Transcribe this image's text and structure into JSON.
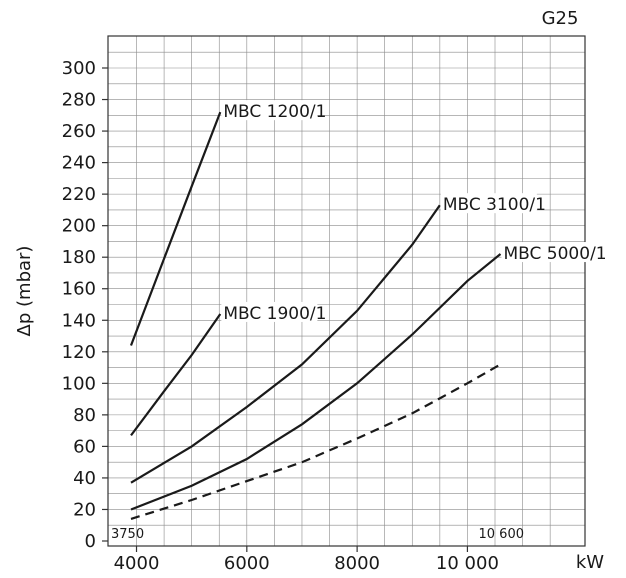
{
  "chart_data": {
    "type": "line",
    "title": "G25",
    "ylabel": "Δp (mbar)",
    "xlabel": "kW",
    "xlim": [
      3500,
      11500
    ],
    "ylim": [
      0,
      310
    ],
    "x_ticks": [
      4000,
      6000,
      8000,
      10000
    ],
    "x_tick_labels": [
      "4000",
      "6000",
      "8000",
      "10 000"
    ],
    "y_ticks": [
      0,
      20,
      40,
      60,
      80,
      100,
      120,
      140,
      160,
      180,
      200,
      220,
      240,
      260,
      280,
      300
    ],
    "grid": true,
    "annotations": [
      {
        "text": "3750",
        "x": 3750
      },
      {
        "text": "10 600",
        "x": 10600
      }
    ],
    "series": [
      {
        "name": "MBC 1200/1",
        "style": "solid",
        "x": [
          3900,
          4400,
          5000,
          5520
        ],
        "y": [
          124,
          170,
          225,
          272
        ]
      },
      {
        "name": "MBC 1900/1",
        "style": "solid",
        "x": [
          3900,
          4500,
          5000,
          5520
        ],
        "y": [
          67,
          95,
          118,
          144
        ]
      },
      {
        "name": "MBC 3100/1",
        "style": "solid",
        "x": [
          3900,
          5000,
          6000,
          7000,
          8000,
          9000,
          9500
        ],
        "y": [
          37,
          60,
          85,
          112,
          146,
          188,
          213
        ]
      },
      {
        "name": "MBC 5000/1",
        "style": "solid",
        "x": [
          3900,
          5000,
          6000,
          7000,
          8000,
          9000,
          10000,
          10600
        ],
        "y": [
          20,
          35,
          52,
          74,
          100,
          131,
          165,
          182
        ]
      },
      {
        "name": "",
        "style": "dashed",
        "x": [
          3900,
          5000,
          6000,
          7000,
          8000,
          9000,
          10000,
          10600
        ],
        "y": [
          14,
          26,
          38,
          50,
          65,
          81,
          100,
          112
        ]
      }
    ]
  }
}
